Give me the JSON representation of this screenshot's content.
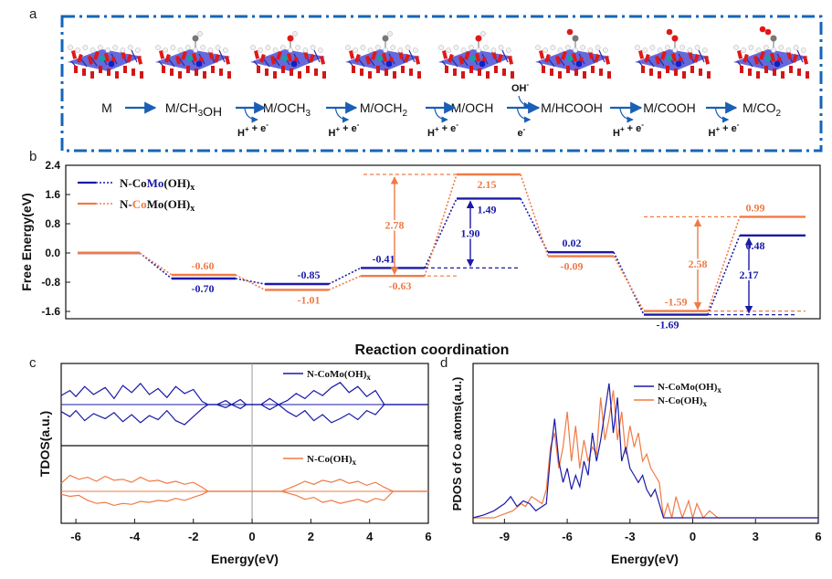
{
  "colors": {
    "blue": "#1a1aa8",
    "orange": "#f07a45",
    "pane_border": "#1565b8",
    "grey": "#9a9a9a",
    "black": "#111111"
  },
  "panel_a": {
    "letter": "a",
    "states": [
      "M",
      "M/CH<sub>3</sub>OH",
      "M/OCH<sub>3</sub>",
      "M/OCH<sub>2</sub>",
      "M/OCH",
      "M/HCOOH",
      "M/COOH",
      "M/CO<sub>2</sub>"
    ],
    "steps": [
      "",
      "H<sup>+</sup> + e<sup>-</sup>",
      "H<sup>+</sup> + e<sup>-</sup>",
      "H<sup>+</sup> + e<sup>-</sup>",
      "e<sup>-</sup>",
      "H<sup>+</sup> + e<sup>-</sup>",
      "H<sup>+</sup> + e<sup>-</sup>"
    ],
    "oh_label": "OH<sup>-</sup>",
    "structure_icons": [
      "slab-structure-icon",
      "slab-ch3oh-structure-icon",
      "slab-och3-structure-icon",
      "slab-och2-structure-icon",
      "slab-och-structure-icon",
      "slab-hcooh-structure-icon",
      "slab-cooh-structure-icon",
      "slab-co2-structure-icon"
    ]
  },
  "chart_data": [
    {
      "panel": "b",
      "type": "line",
      "ylabel": "Free Energy(eV)",
      "xlabel": "Reaction coordination",
      "ylim": [
        -1.8,
        2.4
      ],
      "yticks": [
        "2.4",
        "1.6",
        "0.8",
        "0.0",
        "-0.8",
        "-1.6"
      ],
      "ytick_values": [
        2.4,
        1.6,
        0.8,
        0.0,
        -0.8,
        -1.6
      ],
      "legend_position": "top-left",
      "legend": [
        {
          "html": "N-Co<tspan fill='#1a1aa8'>Mo</tspan>(OH)<tspan font-size='10' dy='3'>x</tspan>",
          "color": "#1a1aa8"
        },
        {
          "html": "N-<tspan fill='#f07a45'>Co</tspan>Mo(OH)<tspan font-size='10' dy='3'>x</tspan>",
          "color": "#f07a45"
        }
      ],
      "series": [
        {
          "name": "N-CoMo(OH)x",
          "color": "#1a1aa8",
          "values": [
            0.0,
            -0.7,
            -0.85,
            -0.41,
            1.49,
            0.02,
            -1.69,
            0.48
          ],
          "labels": [
            "",
            "-0.70",
            "-0.85",
            "-0.41",
            "1.49",
            "0.02",
            "-1.69",
            "0.48"
          ]
        },
        {
          "name": "N-CoMo(OH)x",
          "color": "#f07a45",
          "values": [
            0.0,
            -0.6,
            -1.01,
            -0.63,
            2.15,
            -0.09,
            -1.59,
            0.99
          ],
          "labels": [
            "",
            "-0.60",
            "-1.01",
            "-0.63",
            "2.15",
            "-0.09",
            "-1.59",
            "0.99"
          ]
        }
      ],
      "barriers": [
        {
          "label": "1.90",
          "value": 1.9,
          "color": "#1a1aa8",
          "from": -0.41,
          "to": 1.49
        },
        {
          "label": "2.78",
          "value": 2.78,
          "color": "#f07a45",
          "from": -0.63,
          "to": 2.15
        },
        {
          "label": "2.58",
          "value": 2.58,
          "color": "#f07a45",
          "from": -1.59,
          "to": 0.99
        },
        {
          "label": "2.17",
          "value": 2.17,
          "color": "#1a1aa8",
          "from": -1.69,
          "to": 0.48
        }
      ]
    },
    {
      "panel": "c",
      "type": "line",
      "ylabel": "TDOS(a.u.)",
      "xlabel": "Energy(eV)",
      "xlim": [
        -6.5,
        6
      ],
      "xticks": [
        -6,
        -4,
        -2,
        0,
        2,
        4,
        6
      ],
      "legend_position": "top-right",
      "series": [
        {
          "name": "N-CoMo(OH)x",
          "color": "#1a1aa8",
          "x": [
            -6.5,
            -6.2,
            -6.0,
            -5.7,
            -5.4,
            -5.0,
            -4.7,
            -4.4,
            -4.1,
            -3.8,
            -3.5,
            -3.2,
            -2.9,
            -2.6,
            -2.3,
            -2.0,
            -1.7,
            -1.5,
            -1.2,
            -0.9,
            -0.7,
            -0.4,
            -0.2,
            0.3,
            0.6,
            0.9,
            1.2,
            1.5,
            1.8,
            2.1,
            2.4,
            2.7,
            3.0,
            3.3,
            3.6,
            3.9,
            4.2,
            4.5,
            4.8,
            5.5,
            6.0
          ],
          "up": [
            0.45,
            0.7,
            0.4,
            0.9,
            0.5,
            0.85,
            0.3,
            0.95,
            0.6,
            1.05,
            0.5,
            0.8,
            0.35,
            0.9,
            0.55,
            0.75,
            0.15,
            0.0,
            0.0,
            0.2,
            0.0,
            0.25,
            0.0,
            0.0,
            0.3,
            0.0,
            0.2,
            0.55,
            0.3,
            0.7,
            0.45,
            0.85,
            1.1,
            0.6,
            0.9,
            0.4,
            0.7,
            0.0,
            0.0,
            0.0,
            0.0
          ],
          "down": [
            -0.35,
            -0.6,
            -0.3,
            -0.8,
            -0.45,
            -0.7,
            -0.4,
            -0.85,
            -0.5,
            -0.9,
            -0.55,
            -0.75,
            -0.3,
            -0.8,
            -1.0,
            -0.6,
            -0.2,
            0.0,
            0.0,
            -0.15,
            0.0,
            -0.2,
            0.0,
            0.0,
            -0.25,
            0.0,
            -0.35,
            -0.6,
            -0.3,
            -0.8,
            -0.5,
            -0.9,
            -0.7,
            -0.45,
            -0.75,
            -0.3,
            -0.5,
            0.0,
            0.0,
            0.0,
            0.0
          ]
        },
        {
          "name": "N-Co(OH)x",
          "color": "#f07a45",
          "x": [
            -6.5,
            -6.2,
            -5.9,
            -5.6,
            -5.3,
            -5.0,
            -4.7,
            -4.4,
            -4.1,
            -3.8,
            -3.5,
            -3.2,
            -2.9,
            -2.6,
            -2.3,
            -2.0,
            -1.7,
            -1.5,
            -1.0,
            -0.5,
            0.0,
            0.5,
            1.0,
            1.5,
            1.8,
            2.1,
            2.4,
            2.7,
            3.0,
            3.3,
            3.6,
            3.9,
            4.2,
            4.5,
            4.8,
            5.5,
            6.0
          ],
          "up": [
            0.4,
            0.8,
            0.6,
            0.7,
            0.5,
            0.75,
            0.55,
            0.6,
            0.45,
            0.7,
            0.5,
            0.55,
            0.4,
            0.5,
            0.35,
            0.45,
            0.2,
            0.0,
            0.0,
            0.0,
            0.0,
            0.0,
            0.0,
            0.3,
            0.5,
            0.35,
            0.55,
            0.45,
            0.6,
            0.4,
            0.5,
            0.3,
            0.45,
            0.2,
            0.0,
            0.0,
            0.0
          ],
          "down": [
            -0.15,
            -0.25,
            -0.2,
            -0.45,
            -0.6,
            -0.55,
            -0.7,
            -0.6,
            -0.65,
            -0.5,
            -0.55,
            -0.45,
            -0.5,
            -0.35,
            -0.45,
            -0.3,
            -0.15,
            0.0,
            0.0,
            0.0,
            0.0,
            0.0,
            0.0,
            -0.2,
            -0.4,
            -0.3,
            -0.55,
            -0.45,
            -0.6,
            -0.5,
            -0.4,
            -0.55,
            -0.35,
            -0.45,
            0.0,
            0.0,
            0.0
          ]
        }
      ],
      "legend": [
        {
          "html": "N-CoMo(OH)<tspan font-size='9' dy='3'>x</tspan>",
          "color": "#1a1aa8"
        },
        {
          "html": "N-Co(OH)<tspan font-size='9' dy='3'>x</tspan>",
          "color": "#f07a45"
        }
      ]
    },
    {
      "panel": "d",
      "type": "line",
      "ylabel": "PDOS of Co atoms(a.u.)",
      "xlabel": "Energy(eV)",
      "xlim": [
        -10.5,
        6
      ],
      "xticks": [
        -9,
        -6,
        -3,
        0,
        3,
        6
      ],
      "legend_position": "top-center",
      "series": [
        {
          "name": "N-CoMo(OH)x",
          "color": "#1a1aa8",
          "x": [
            -10.5,
            -10.0,
            -9.5,
            -9.0,
            -8.7,
            -8.4,
            -8.1,
            -7.8,
            -7.5,
            -7.2,
            -7.0,
            -6.8,
            -6.6,
            -6.4,
            -6.2,
            -6.0,
            -5.8,
            -5.6,
            -5.4,
            -5.2,
            -5.0,
            -4.8,
            -4.6,
            -4.4,
            -4.2,
            -4.0,
            -3.8,
            -3.6,
            -3.4,
            -3.2,
            -3.0,
            -2.8,
            -2.6,
            -2.4,
            -2.2,
            -2.0,
            -1.8,
            -1.6,
            -1.4,
            0.0,
            3.0,
            6.0
          ],
          "values": [
            0.0,
            0.02,
            0.05,
            0.1,
            0.15,
            0.08,
            0.12,
            0.1,
            0.05,
            0.08,
            0.1,
            0.45,
            0.7,
            0.4,
            0.25,
            0.35,
            0.2,
            0.3,
            0.22,
            0.4,
            0.3,
            0.6,
            0.4,
            0.55,
            0.75,
            0.95,
            0.6,
            0.85,
            0.4,
            0.5,
            0.35,
            0.3,
            0.25,
            0.3,
            0.2,
            0.15,
            0.2,
            0.1,
            0.0,
            0.0,
            0.0,
            0.0
          ]
        },
        {
          "name": "N-Co(OH)x",
          "color": "#f07a45",
          "x": [
            -10.5,
            -9.5,
            -8.6,
            -8.2,
            -8.0,
            -7.7,
            -7.4,
            -7.2,
            -7.0,
            -6.8,
            -6.6,
            -6.4,
            -6.2,
            -6.0,
            -5.8,
            -5.6,
            -5.4,
            -5.2,
            -5.0,
            -4.8,
            -4.6,
            -4.4,
            -4.2,
            -4.0,
            -3.8,
            -3.6,
            -3.4,
            -3.2,
            -3.0,
            -2.8,
            -2.6,
            -2.4,
            -2.2,
            -2.0,
            -1.8,
            -1.6,
            -1.4,
            -1.2,
            -1.0,
            -0.8,
            -0.5,
            -0.2,
            0.0,
            0.2,
            0.5,
            0.8,
            1.2,
            6.0
          ],
          "values": [
            0.0,
            0.0,
            0.05,
            0.1,
            0.08,
            0.15,
            0.12,
            0.1,
            0.2,
            0.5,
            0.6,
            0.35,
            0.5,
            0.75,
            0.4,
            0.65,
            0.35,
            0.55,
            0.4,
            0.5,
            0.45,
            0.85,
            0.55,
            0.7,
            0.9,
            0.55,
            0.75,
            0.45,
            0.65,
            0.5,
            0.6,
            0.4,
            0.45,
            0.35,
            0.3,
            0.25,
            0.0,
            0.1,
            0.0,
            0.15,
            0.0,
            0.12,
            0.0,
            0.1,
            0.0,
            0.05,
            0.0,
            0.0
          ]
        }
      ],
      "legend": [
        {
          "html": "N-CoMo(OH)<tspan font-size='9' dy='3'>x</tspan>",
          "color": "#1a1aa8"
        },
        {
          "html": "N-Co(OH)<tspan font-size='9' dy='3'>x</tspan>",
          "color": "#f07a45"
        }
      ]
    }
  ]
}
